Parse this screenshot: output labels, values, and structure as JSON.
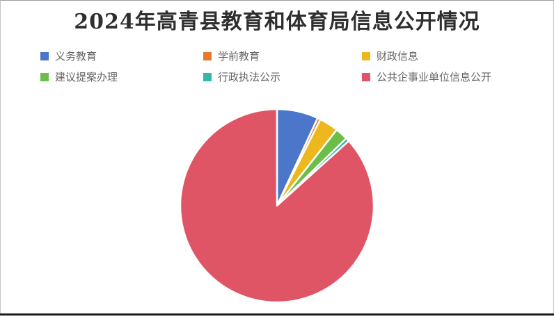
{
  "page": {
    "background": "#ffffff",
    "frame_border_color": "#c4c4c4",
    "bottom_rule_color": "#1d1d1d"
  },
  "chart_data": {
    "type": "pie",
    "title": "2024年高青县教育和体育局信息公开情况",
    "title_color": "#2e2e2e",
    "legend_position": "top",
    "legend_text_color": "#646464",
    "start_angle_deg": 0,
    "start_reference": "12-o-clock",
    "direction": "clockwise",
    "slice_gap_color": "#ffffff",
    "slices": [
      {
        "label": "义务教育",
        "value_pct": 6.9,
        "color": "#4B76C9"
      },
      {
        "label": "学前教育",
        "value_pct": 0.5,
        "color": "#E9782D"
      },
      {
        "label": "财政信息",
        "value_pct": 3.2,
        "color": "#EDB71E"
      },
      {
        "label": "建议提案办理",
        "value_pct": 2.1,
        "color": "#6CBE49"
      },
      {
        "label": "行政执法公示",
        "value_pct": 0.6,
        "color": "#2FB9A9"
      },
      {
        "label": "公共企事业单位信息公开",
        "value_pct": 86.7,
        "color": "#E05566"
      }
    ]
  }
}
